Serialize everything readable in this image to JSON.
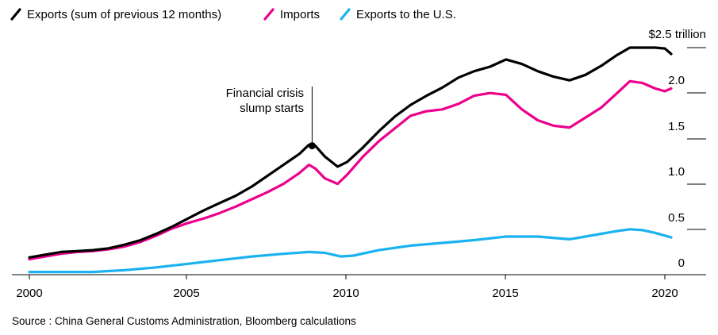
{
  "chart_data": {
    "type": "line",
    "title": "",
    "xlabel": "",
    "ylabel": "",
    "xlim": [
      2000,
      2021
    ],
    "ylim": [
      0,
      2.5
    ],
    "x_ticks": [
      {
        "value": 2000,
        "label": "2000"
      },
      {
        "value": 2005,
        "label": "2005"
      },
      {
        "value": 2010,
        "label": "2010"
      },
      {
        "value": 2015,
        "label": "2015"
      },
      {
        "value": 2020,
        "label": "2020"
      }
    ],
    "y_ticks": [
      {
        "value": 0,
        "label": "0"
      },
      {
        "value": 0.5,
        "label": "0.5"
      },
      {
        "value": 1.0,
        "label": "1.0"
      },
      {
        "value": 1.5,
        "label": "1.5"
      },
      {
        "value": 2.0,
        "label": "2.0"
      },
      {
        "value": 2.5,
        "label": "$2.5 trillion"
      }
    ],
    "legend": [
      {
        "name": "Exports (sum of previous 12 months)",
        "color": "#000000"
      },
      {
        "name": "Imports",
        "color": "#ec008c"
      },
      {
        "name": "Exports to the U.S.",
        "color": "#1ab2f0"
      }
    ],
    "series": [
      {
        "name": "Exports (sum of previous 12 months)",
        "color": "#000000",
        "x": [
          2000.0,
          2000.5,
          2001.0,
          2001.5,
          2002.0,
          2002.5,
          2003.0,
          2003.5,
          2004.0,
          2004.5,
          2005.0,
          2005.5,
          2006.0,
          2006.5,
          2007.0,
          2007.5,
          2008.0,
          2008.5,
          2008.8,
          2009.0,
          2009.3,
          2009.7,
          2010.0,
          2010.5,
          2011.0,
          2011.5,
          2012.0,
          2012.5,
          2013.0,
          2013.5,
          2014.0,
          2014.5,
          2015.0,
          2015.5,
          2016.0,
          2016.5,
          2017.0,
          2017.5,
          2018.0,
          2018.5,
          2018.9,
          2019.3,
          2019.7,
          2020.0,
          2020.2
        ],
        "values": [
          0.19,
          0.22,
          0.25,
          0.26,
          0.27,
          0.29,
          0.33,
          0.38,
          0.45,
          0.53,
          0.62,
          0.71,
          0.79,
          0.87,
          0.97,
          1.09,
          1.21,
          1.33,
          1.43,
          1.42,
          1.3,
          1.19,
          1.24,
          1.4,
          1.58,
          1.74,
          1.87,
          1.97,
          2.06,
          2.17,
          2.24,
          2.29,
          2.37,
          2.32,
          2.24,
          2.18,
          2.14,
          2.2,
          2.3,
          2.42,
          2.5,
          2.5,
          2.5,
          2.49,
          2.43
        ]
      },
      {
        "name": "Imports",
        "color": "#ec008c",
        "x": [
          2000.0,
          2000.5,
          2001.0,
          2001.5,
          2002.0,
          2002.5,
          2003.0,
          2003.5,
          2004.0,
          2004.5,
          2005.0,
          2005.5,
          2006.0,
          2006.5,
          2007.0,
          2007.5,
          2008.0,
          2008.5,
          2008.8,
          2009.0,
          2009.3,
          2009.7,
          2010.0,
          2010.5,
          2011.0,
          2011.5,
          2012.0,
          2012.5,
          2013.0,
          2013.5,
          2014.0,
          2014.5,
          2015.0,
          2015.5,
          2016.0,
          2016.5,
          2017.0,
          2017.5,
          2018.0,
          2018.5,
          2018.9,
          2019.3,
          2019.7,
          2020.0,
          2020.2
        ],
        "values": [
          0.17,
          0.2,
          0.23,
          0.25,
          0.26,
          0.28,
          0.31,
          0.36,
          0.43,
          0.51,
          0.57,
          0.62,
          0.68,
          0.75,
          0.83,
          0.91,
          1.0,
          1.12,
          1.21,
          1.17,
          1.06,
          1.0,
          1.1,
          1.3,
          1.47,
          1.61,
          1.75,
          1.8,
          1.82,
          1.88,
          1.97,
          2.0,
          1.98,
          1.82,
          1.7,
          1.64,
          1.62,
          1.73,
          1.84,
          2.0,
          2.13,
          2.11,
          2.05,
          2.02,
          2.05
        ]
      },
      {
        "name": "Exports to the U.S.",
        "color": "#1ab2f0",
        "x": [
          2000.0,
          2001.0,
          2002.0,
          2003.0,
          2004.0,
          2005.0,
          2006.0,
          2007.0,
          2008.0,
          2008.8,
          2009.3,
          2009.8,
          2010.2,
          2011.0,
          2012.0,
          2013.0,
          2014.0,
          2015.0,
          2016.0,
          2017.0,
          2018.0,
          2018.5,
          2018.9,
          2019.3,
          2019.7,
          2020.0,
          2020.2
        ],
        "values": [
          0.03,
          0.03,
          0.03,
          0.05,
          0.08,
          0.12,
          0.16,
          0.2,
          0.23,
          0.25,
          0.24,
          0.2,
          0.21,
          0.27,
          0.32,
          0.35,
          0.38,
          0.42,
          0.42,
          0.39,
          0.45,
          0.48,
          0.5,
          0.49,
          0.46,
          0.43,
          0.41
        ]
      }
    ],
    "annotations": [
      {
        "text_lines": [
          "Financial crisis",
          "slump starts"
        ],
        "x": 2008.9,
        "y": 1.42
      }
    ],
    "grid": false,
    "legend_position": "top-left"
  },
  "source_note": "Source : China General Customs Administration, Bloomberg calculations"
}
